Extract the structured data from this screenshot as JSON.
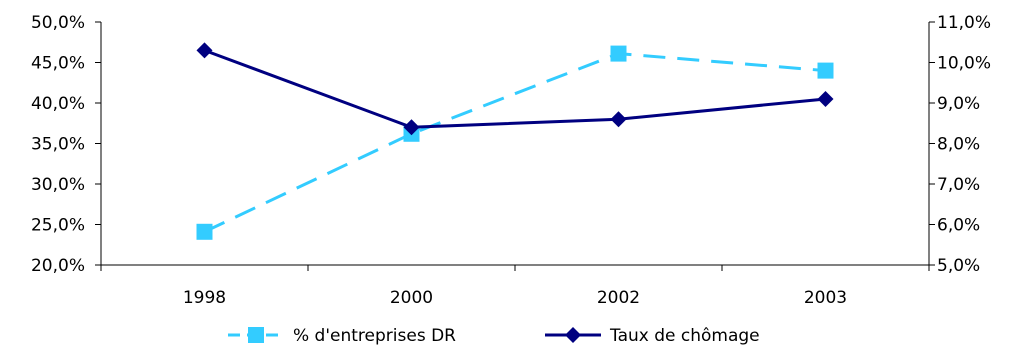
{
  "chart_data": {
    "type": "line",
    "categories": [
      "1998",
      "2000",
      "2002",
      "2003"
    ],
    "y_left": {
      "range": [
        20,
        50
      ],
      "step": 5,
      "tick_labels": [
        "50,0%",
        "45,0%",
        "40,0%",
        "35,0%",
        "30,0%",
        "25,0%",
        "20,0%"
      ]
    },
    "y_right": {
      "range": [
        5,
        11
      ],
      "step": 1,
      "tick_labels": [
        "11,0%",
        "10,0%",
        "9,0%",
        "8,0%",
        "7,0%",
        "6,0%",
        "5,0%"
      ]
    },
    "series": [
      {
        "name": "% d'entreprises DR",
        "axis": "left",
        "values": [
          24.1,
          36.2,
          46.1,
          44.0
        ],
        "color": "#33CCFF",
        "line_style": "dashed",
        "marker": "square"
      },
      {
        "name": "Taux de chômage",
        "axis": "right",
        "values": [
          10.3,
          8.4,
          8.6,
          9.1
        ],
        "color": "#000080",
        "line_style": "solid",
        "marker": "diamond"
      }
    ],
    "grid": false,
    "legend_position": "bottom"
  }
}
